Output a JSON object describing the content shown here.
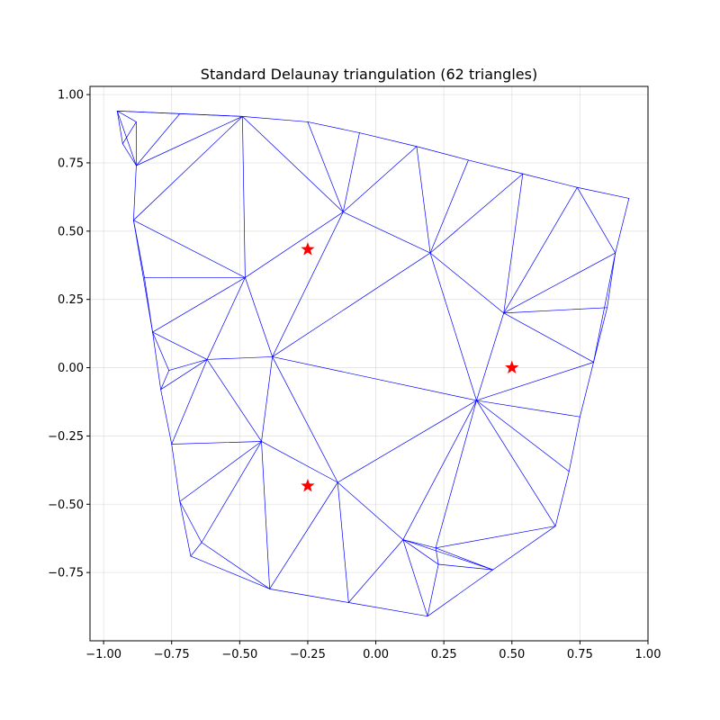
{
  "chart_data": {
    "type": "triangulation",
    "title": "Standard Delaunay triangulation (62 triangles)",
    "xlabel": "",
    "ylabel": "",
    "xlim": [
      -1.05,
      1.0
    ],
    "ylim": [
      -1.0,
      1.03
    ],
    "xticks": [
      "−1.00",
      "−0.75",
      "−0.50",
      "−0.25",
      "0.00",
      "0.25",
      "0.50",
      "0.75",
      "1.00"
    ],
    "xtick_values": [
      -1.0,
      -0.75,
      -0.5,
      -0.25,
      0.0,
      0.25,
      0.5,
      0.75,
      1.0
    ],
    "yticks": [
      "1.00",
      "0.75",
      "0.50",
      "0.25",
      "0.00",
      "−0.25",
      "−0.50",
      "−0.75"
    ],
    "ytick_values": [
      1.0,
      0.75,
      0.5,
      0.25,
      0.0,
      -0.25,
      -0.5,
      -0.75
    ],
    "grid": true,
    "edge_color": "#0000ff",
    "marker_color": "#ff0000",
    "vertices": [
      [
        -0.95,
        0.94
      ],
      [
        -0.88,
        0.9
      ],
      [
        -0.72,
        0.93
      ],
      [
        -0.49,
        0.92
      ],
      [
        -0.25,
        0.9
      ],
      [
        -0.06,
        0.86
      ],
      [
        0.15,
        0.81
      ],
      [
        0.34,
        0.76
      ],
      [
        0.54,
        0.71
      ],
      [
        0.74,
        0.66
      ],
      [
        0.93,
        0.62
      ],
      [
        -0.93,
        0.82
      ],
      [
        -0.88,
        0.74
      ],
      [
        -0.89,
        0.54
      ],
      [
        -0.12,
        0.57
      ],
      [
        0.2,
        0.42
      ],
      [
        0.88,
        0.42
      ],
      [
        -0.48,
        0.33
      ],
      [
        -0.85,
        0.33
      ],
      [
        0.47,
        0.2
      ],
      [
        0.85,
        0.22
      ],
      [
        -0.82,
        0.13
      ],
      [
        -0.62,
        0.03
      ],
      [
        -0.38,
        0.04
      ],
      [
        -0.76,
        -0.01
      ],
      [
        -0.79,
        -0.08
      ],
      [
        0.8,
        0.02
      ],
      [
        0.37,
        -0.12
      ],
      [
        0.75,
        -0.18
      ],
      [
        -0.75,
        -0.28
      ],
      [
        -0.42,
        -0.27
      ],
      [
        0.71,
        -0.38
      ],
      [
        -0.14,
        -0.42
      ],
      [
        -0.72,
        -0.49
      ],
      [
        0.66,
        -0.58
      ],
      [
        -0.64,
        -0.64
      ],
      [
        -0.68,
        -0.69
      ],
      [
        0.1,
        -0.63
      ],
      [
        0.22,
        -0.66
      ],
      [
        0.23,
        -0.72
      ],
      [
        0.43,
        -0.74
      ],
      [
        -0.39,
        -0.81
      ],
      [
        -0.1,
        -0.86
      ],
      [
        0.19,
        -0.91
      ]
    ],
    "edges": [
      [
        0,
        1
      ],
      [
        0,
        2
      ],
      [
        0,
        3
      ],
      [
        0,
        11
      ],
      [
        0,
        12
      ],
      [
        1,
        12
      ],
      [
        1,
        11
      ],
      [
        2,
        12
      ],
      [
        2,
        3
      ],
      [
        3,
        12
      ],
      [
        3,
        13
      ],
      [
        3,
        17
      ],
      [
        3,
        14
      ],
      [
        3,
        4
      ],
      [
        4,
        14
      ],
      [
        4,
        5
      ],
      [
        5,
        14
      ],
      [
        5,
        6
      ],
      [
        6,
        14
      ],
      [
        6,
        15
      ],
      [
        6,
        7
      ],
      [
        7,
        15
      ],
      [
        7,
        8
      ],
      [
        8,
        15
      ],
      [
        8,
        19
      ],
      [
        8,
        9
      ],
      [
        9,
        19
      ],
      [
        9,
        16
      ],
      [
        9,
        10
      ],
      [
        10,
        16
      ],
      [
        11,
        12
      ],
      [
        12,
        13
      ],
      [
        13,
        17
      ],
      [
        13,
        18
      ],
      [
        13,
        21
      ],
      [
        14,
        15
      ],
      [
        14,
        17
      ],
      [
        14,
        23
      ],
      [
        15,
        23
      ],
      [
        15,
        19
      ],
      [
        15,
        27
      ],
      [
        16,
        19
      ],
      [
        16,
        20
      ],
      [
        16,
        26
      ],
      [
        19,
        20
      ],
      [
        19,
        26
      ],
      [
        19,
        27
      ],
      [
        20,
        26
      ],
      [
        17,
        18
      ],
      [
        17,
        21
      ],
      [
        17,
        22
      ],
      [
        17,
        23
      ],
      [
        18,
        21
      ],
      [
        21,
        22
      ],
      [
        21,
        24
      ],
      [
        21,
        25
      ],
      [
        24,
        22
      ],
      [
        24,
        25
      ],
      [
        22,
        25
      ],
      [
        22,
        29
      ],
      [
        22,
        30
      ],
      [
        22,
        23
      ],
      [
        23,
        30
      ],
      [
        23,
        32
      ],
      [
        23,
        27
      ],
      [
        25,
        29
      ],
      [
        26,
        27
      ],
      [
        26,
        28
      ],
      [
        27,
        28
      ],
      [
        27,
        31
      ],
      [
        27,
        34
      ],
      [
        27,
        32
      ],
      [
        27,
        37
      ],
      [
        27,
        38
      ],
      [
        28,
        31
      ],
      [
        31,
        34
      ],
      [
        29,
        30
      ],
      [
        29,
        33
      ],
      [
        30,
        33
      ],
      [
        30,
        35
      ],
      [
        30,
        41
      ],
      [
        30,
        32
      ],
      [
        32,
        41
      ],
      [
        32,
        42
      ],
      [
        32,
        37
      ],
      [
        33,
        35
      ],
      [
        33,
        36
      ],
      [
        35,
        36
      ],
      [
        35,
        41
      ],
      [
        36,
        41
      ],
      [
        41,
        42
      ],
      [
        42,
        43
      ],
      [
        42,
        37
      ],
      [
        37,
        43
      ],
      [
        37,
        39
      ],
      [
        37,
        38
      ],
      [
        37,
        40
      ],
      [
        38,
        39
      ],
      [
        38,
        40
      ],
      [
        38,
        34
      ],
      [
        39,
        43
      ],
      [
        39,
        40
      ],
      [
        40,
        43
      ],
      [
        40,
        34
      ]
    ],
    "markers": [
      {
        "x": -0.25,
        "y": 0.433
      },
      {
        "x": 0.5,
        "y": 0.0
      },
      {
        "x": -0.25,
        "y": -0.433
      }
    ]
  }
}
